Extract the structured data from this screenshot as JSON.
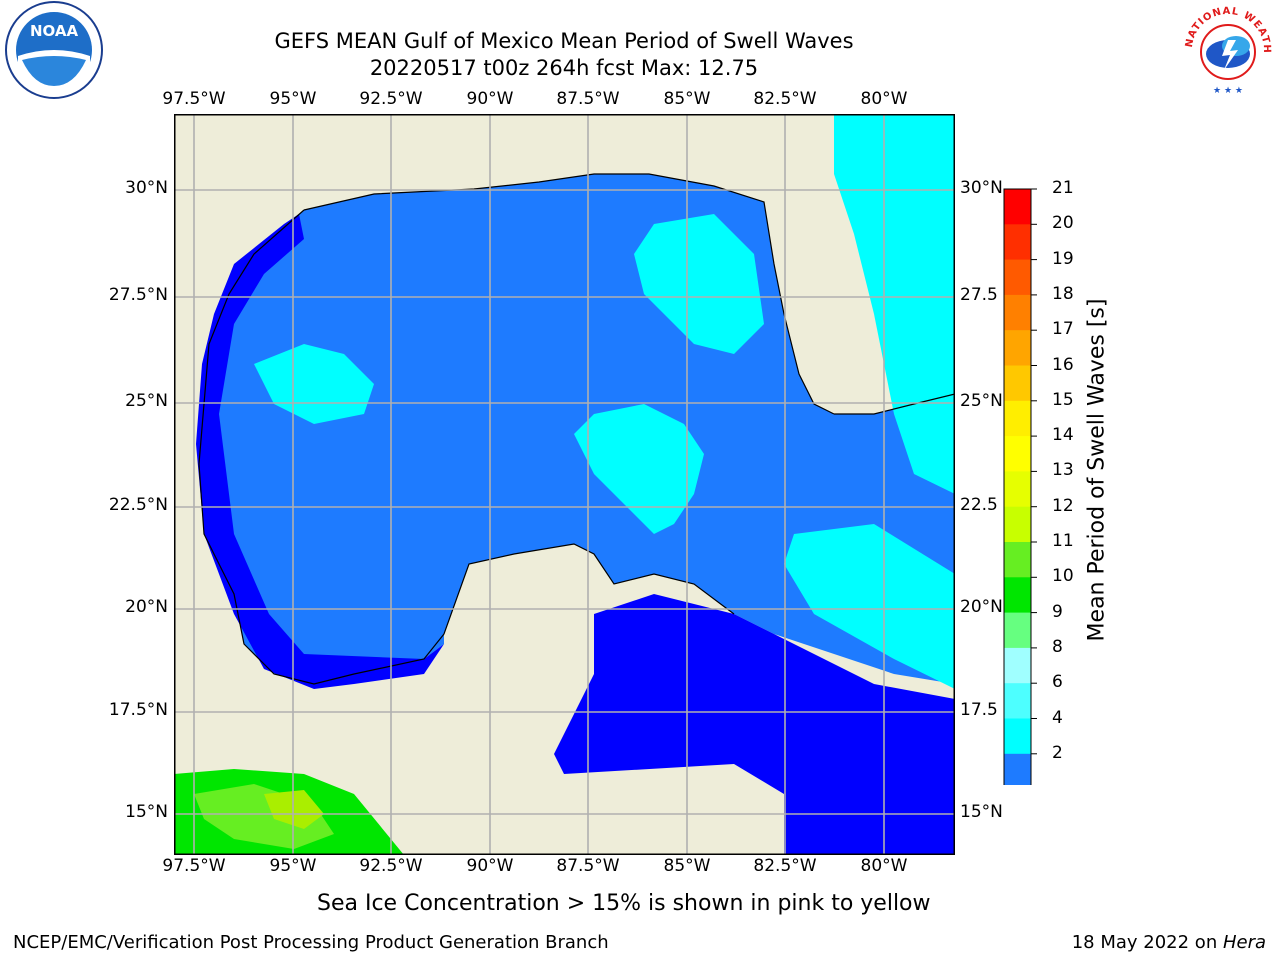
{
  "title_line1": "GEFS MEAN Gulf of Mexico Mean Period of Swell Waves",
  "title_line2": "20220517 t00z 264h fcst   Max: 12.75",
  "logos": {
    "noaa_text": "NOAA",
    "nws_text": "NATIONAL WEATHER SERVICE"
  },
  "map": {
    "lon_labels": [
      "97.5°W",
      "95°W",
      "92.5°W",
      "90°W",
      "87.5°W",
      "85°W",
      "82.5°W",
      "80°W"
    ],
    "lat_labels_left": [
      "30°N",
      "27.5°N",
      "25°N",
      "22.5°N",
      "20°N",
      "17.5°N",
      "15°N"
    ],
    "lat_labels_right": [
      "30°N",
      "27.5",
      "25°N",
      "22.5",
      "20°N",
      "17.5",
      "15°N"
    ],
    "colors": {
      "land": "#eeedd9",
      "level_2_4": "#1e7bff",
      "level_below_2": "#0000ff",
      "level_4_6": "#00ffff",
      "level_6_8": "#4dffff",
      "level_10_11": "#00e600",
      "level_11_12": "#66ee22",
      "level_12_13": "#aaee00"
    }
  },
  "colorbar": {
    "label": "Mean Period of Swell Waves [s]",
    "ticks": [
      "21",
      "20",
      "19",
      "18",
      "17",
      "16",
      "15",
      "14",
      "13",
      "12",
      "11",
      "10",
      "9",
      "8",
      "6",
      "4",
      "2"
    ],
    "colors": [
      "#ff0000",
      "#ff2f00",
      "#ff5a00",
      "#ff8000",
      "#ffa500",
      "#ffc800",
      "#ffee00",
      "#ffff00",
      "#e6ff00",
      "#c8ff00",
      "#66ee22",
      "#00e600",
      "#66ff80",
      "#a0ffff",
      "#4dffff",
      "#00ffff",
      "#1e7bff"
    ],
    "extend_color": "#0000ff"
  },
  "caption": "Sea Ice Concentration > 15% is shown in pink to yellow",
  "footer_left": "NCEP/EMC/Verification Post Processing Product Generation Branch",
  "footer_right_date": "18 May 2022 on ",
  "footer_right_host": "Hera"
}
